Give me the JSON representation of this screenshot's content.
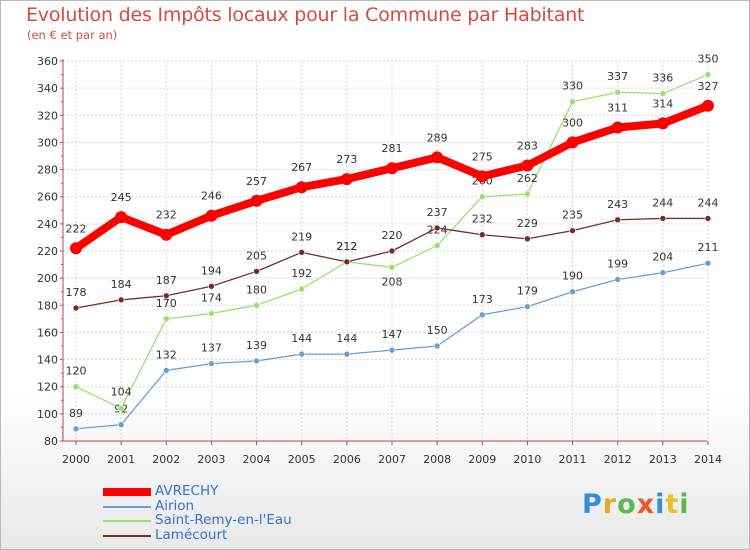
{
  "chart_data": {
    "type": "line",
    "title": "Evolution des Impôts locaux pour la Commune par Habitant",
    "subtitle": "(en € et par an)",
    "x": [
      "2000",
      "2001",
      "2002",
      "2003",
      "2004",
      "2005",
      "2006",
      "2007",
      "2008",
      "2009",
      "2010",
      "2011",
      "2012",
      "2013",
      "2014"
    ],
    "yticks": [
      80,
      100,
      120,
      140,
      160,
      180,
      200,
      220,
      240,
      260,
      280,
      300,
      320,
      340,
      360
    ],
    "ylim": [
      80,
      360
    ],
    "grid": true,
    "legend_position": "bottom-left",
    "series": [
      {
        "name": "AVRECHY",
        "color": "#ff0000",
        "values": [
          222,
          245,
          232,
          246,
          257,
          267,
          273,
          281,
          289,
          275,
          283,
          300,
          311,
          314,
          327
        ],
        "labels": [
          "222",
          "245",
          "232",
          "246",
          "257",
          "267",
          "273",
          "281",
          "289",
          "275",
          "283",
          "300",
          "311",
          "314",
          "327"
        ]
      },
      {
        "name": "Airion",
        "color": "#6a9fd4",
        "values": [
          89,
          92,
          132,
          137,
          139,
          144,
          144,
          147,
          150,
          173,
          179,
          190,
          199,
          204,
          211
        ],
        "labels": [
          "89",
          "92",
          "132",
          "137",
          "139",
          "144",
          "144",
          "147",
          "150",
          "173",
          "179",
          "190",
          "199",
          "204",
          "211"
        ]
      },
      {
        "name": "Saint-Remy-en-l'Eau",
        "color": "#99e26a",
        "values": [
          120,
          104,
          170,
          174,
          180,
          192,
          212,
          208,
          224,
          260,
          262,
          330,
          337,
          336,
          350
        ],
        "labels": [
          "120",
          "104",
          "170",
          "174",
          "180",
          "192",
          "212",
          "208",
          "224",
          "260",
          "262",
          "330",
          "337",
          "336",
          "350"
        ]
      },
      {
        "name": "Lamécourt",
        "color": "#7a2a2a",
        "values": [
          178,
          184,
          187,
          194,
          205,
          219,
          212,
          220,
          237,
          232,
          229,
          235,
          243,
          244,
          244
        ],
        "labels": [
          "178",
          "184",
          "187",
          "194",
          "205",
          "219",
          "212",
          "220",
          "237",
          "232",
          "229",
          "235",
          "243",
          "244",
          "244"
        ]
      }
    ]
  },
  "logo": {
    "letters": [
      "P",
      "r",
      "o",
      "x",
      "i",
      "t",
      "i"
    ],
    "colors": [
      "#2f8fd8",
      "#e8a52a",
      "#5cb84e",
      "#e85a2a",
      "#2f8fd8",
      "#e8c22a",
      "#5cb84e"
    ]
  }
}
